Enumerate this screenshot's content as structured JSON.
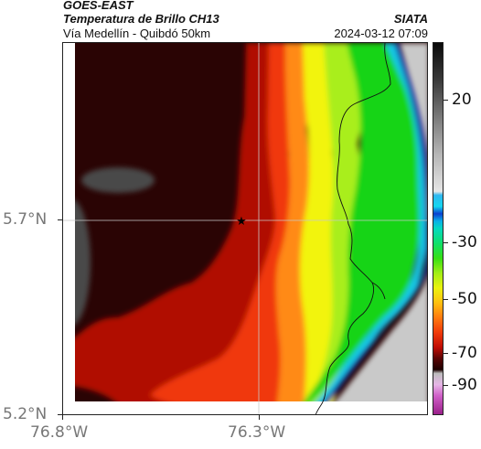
{
  "header": {
    "satellite": "GOES-EAST",
    "product": "Temperatura de Brillo CH13",
    "region": "Vía Medellín - Quibdó 50km",
    "brand": "SIATA",
    "timestamp": "2024-03-12 07:09"
  },
  "axes": {
    "y_ticks": [
      "5.7°N",
      "5.2°N"
    ],
    "x_ticks": [
      "76.8°W",
      "76.3°W"
    ]
  },
  "colorbar": {
    "ticks": [
      "20",
      "-30",
      "-50",
      "-70",
      "-90"
    ],
    "range": [
      -95,
      40
    ]
  },
  "map": {
    "marker": "star-icon",
    "colors": {
      "very_cold": "#2a0404",
      "cold": "#b00d05",
      "red": "#f03808",
      "orange": "#ff8a12",
      "yellow": "#f2f40f",
      "lime": "#a9ee1c",
      "green": "#19d419",
      "cyan": "#13c8e6",
      "blue": "#12249c",
      "warm_surface": "#c9c9c9",
      "gray_cloud": "#484848"
    }
  }
}
